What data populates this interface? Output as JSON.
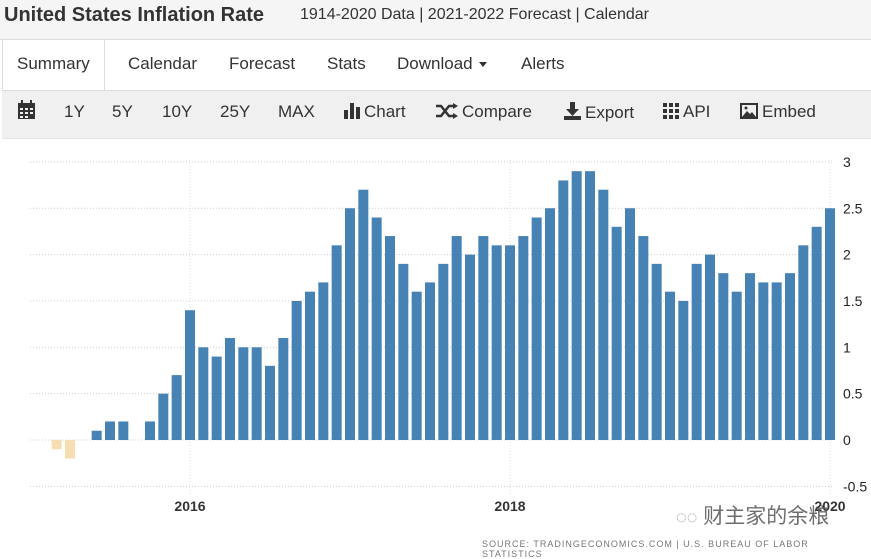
{
  "header": {
    "title": "United States Inflation Rate",
    "subtitle": "1914-2020 Data | 2021-2022 Forecast | Calendar"
  },
  "tabs": [
    {
      "label": "Summary",
      "active": true
    },
    {
      "label": "Calendar"
    },
    {
      "label": "Forecast"
    },
    {
      "label": "Stats"
    },
    {
      "label": "Download"
    },
    {
      "label": "Alerts"
    }
  ],
  "toolbar": {
    "calendar_icon": "calendar-icon",
    "ranges": [
      "1Y",
      "5Y",
      "10Y",
      "25Y",
      "MAX"
    ],
    "chart": "Chart",
    "compare": "Compare",
    "export": "Export",
    "api": "API",
    "embed": "Embed"
  },
  "source": "SOURCE: TRADINGECONOMICS.COM  |  U.S. BUREAU OF LABOR STATISTICS",
  "watermark": "财主家的余粮",
  "colors": {
    "positive": "#4682b4",
    "negative": "#f5deb3"
  },
  "chart_data": {
    "type": "bar",
    "title": "",
    "xlabel": "",
    "ylabel": "",
    "ylim": [
      -0.5,
      3
    ],
    "yticks": [
      3,
      2.5,
      2,
      1.5,
      1,
      0.5,
      0,
      -0.5
    ],
    "y_axis_position": "right",
    "xticks": [
      "2016",
      "2018",
      "2020"
    ],
    "grid": true,
    "start": "2015-02",
    "end": "2020-01",
    "frequency": "monthly",
    "values": [
      0.0,
      -0.1,
      -0.2,
      0.0,
      0.1,
      0.2,
      0.2,
      0.0,
      0.2,
      0.5,
      0.7,
      1.4,
      1.0,
      0.9,
      1.1,
      1.0,
      1.0,
      0.8,
      1.1,
      1.5,
      1.6,
      1.7,
      2.1,
      2.5,
      2.7,
      2.4,
      2.2,
      1.9,
      1.6,
      1.7,
      1.9,
      2.2,
      2.0,
      2.2,
      2.1,
      2.1,
      2.2,
      2.4,
      2.5,
      2.8,
      2.9,
      2.9,
      2.7,
      2.3,
      2.5,
      2.2,
      1.9,
      1.6,
      1.5,
      1.9,
      2.0,
      1.8,
      1.6,
      1.8,
      1.7,
      1.7,
      1.8,
      2.1,
      2.3,
      2.5
    ]
  }
}
